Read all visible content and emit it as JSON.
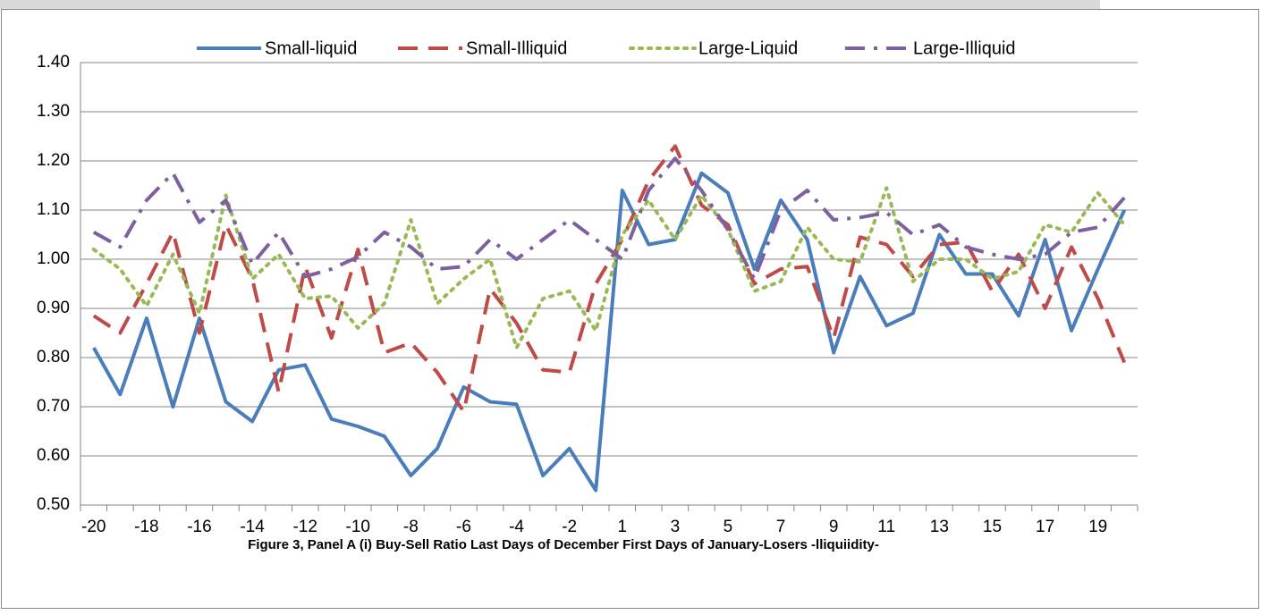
{
  "chart_data": {
    "type": "line",
    "title": "Figure 3, Panel A (i) Buy-Sell Ratio Last Days of December First Days of January-Losers -lliquiidity-",
    "categories": [
      "-20",
      null,
      "-18",
      null,
      "-16",
      null,
      "-14",
      null,
      "-12",
      null,
      "-10",
      null,
      "-8",
      null,
      "-6",
      null,
      "-4",
      null,
      "-2",
      null,
      "1",
      null,
      "3",
      null,
      "5",
      null,
      "7",
      null,
      "9",
      null,
      "11",
      null,
      "13",
      null,
      "15",
      null,
      "17",
      null,
      "19",
      null
    ],
    "ylim": [
      0.5,
      1.4
    ],
    "yticks": [
      {
        "value": 0.5,
        "label": "0.50"
      },
      {
        "value": 0.6,
        "label": "0.60"
      },
      {
        "value": 0.7,
        "label": "0.70"
      },
      {
        "value": 0.8,
        "label": "0.80"
      },
      {
        "value": 0.9,
        "label": "0.90"
      },
      {
        "value": 1.0,
        "label": "1.00"
      },
      {
        "value": 1.1,
        "label": "1.10"
      },
      {
        "value": 1.2,
        "label": "1.20"
      },
      {
        "value": 1.3,
        "label": "1.30"
      },
      {
        "value": 1.4,
        "label": "1.40"
      }
    ],
    "grid": true,
    "legend": "top",
    "series": [
      {
        "name": "Small-liquid",
        "color": "#4a7ebb",
        "dash": "solid",
        "values": [
          0.82,
          0.725,
          0.88,
          0.7,
          0.88,
          0.71,
          0.67,
          0.775,
          0.785,
          0.675,
          0.66,
          0.64,
          0.56,
          0.615,
          0.74,
          0.71,
          0.705,
          0.56,
          0.615,
          0.53,
          1.14,
          1.03,
          1.04,
          1.175,
          1.135,
          0.98,
          1.12,
          1.04,
          0.81,
          0.965,
          0.865,
          0.89,
          1.05,
          0.97,
          0.97,
          0.885,
          1.04,
          0.855,
          0.98,
          1.1
        ]
      },
      {
        "name": "Small-Illiquid",
        "color": "#be4b48",
        "dash": "dash",
        "values": [
          0.885,
          0.85,
          0.95,
          1.055,
          0.85,
          1.07,
          0.96,
          0.73,
          0.985,
          0.84,
          1.02,
          0.81,
          0.83,
          0.77,
          0.69,
          0.94,
          0.87,
          0.775,
          0.77,
          0.95,
          1.04,
          1.16,
          1.23,
          1.11,
          1.07,
          0.95,
          0.98,
          0.985,
          0.84,
          1.045,
          1.03,
          0.965,
          1.03,
          1.035,
          0.935,
          1.01,
          0.9,
          1.025,
          0.92,
          0.79
        ]
      },
      {
        "name": "Large-Liquid",
        "color": "#98b954",
        "dash": "dot",
        "values": [
          1.02,
          0.98,
          0.905,
          1.01,
          0.89,
          1.13,
          0.96,
          1.01,
          0.92,
          0.925,
          0.86,
          0.91,
          1.08,
          0.91,
          0.96,
          1.0,
          0.82,
          0.92,
          0.935,
          0.855,
          1.05,
          1.12,
          1.04,
          1.13,
          1.06,
          0.935,
          0.955,
          1.065,
          1.0,
          0.995,
          1.145,
          0.955,
          1.0,
          1.0,
          0.96,
          0.975,
          1.07,
          1.055,
          1.135,
          1.07
        ]
      },
      {
        "name": "Large-Illiquid",
        "color": "#7d60a0",
        "dash": "dashdot",
        "values": [
          1.055,
          1.025,
          1.12,
          1.175,
          1.075,
          1.12,
          0.99,
          1.055,
          0.965,
          0.98,
          1.005,
          1.055,
          1.025,
          0.98,
          0.985,
          1.04,
          1.0,
          1.04,
          1.08,
          1.04,
          1.0,
          1.14,
          1.205,
          1.14,
          1.06,
          0.96,
          1.1,
          1.14,
          1.08,
          1.085,
          1.095,
          1.05,
          1.07,
          1.025,
          1.01,
          1.0,
          1.01,
          1.055,
          1.065,
          1.125
        ]
      }
    ]
  }
}
